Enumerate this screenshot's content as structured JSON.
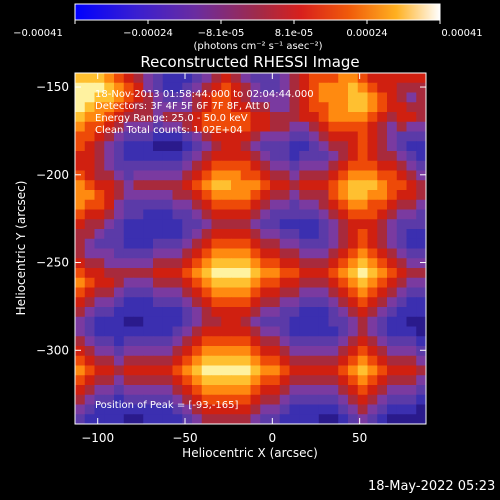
{
  "chart_data": {
    "type": "heatmap",
    "title": "Reconstructed RHESSI Image",
    "xlabel": "Heliocentric X (arcsec)",
    "ylabel": "Heliocentric Y (arcsec)",
    "xlim": [
      -113,
      88
    ],
    "ylim": [
      -342,
      -142
    ],
    "x_ticks": [
      -100,
      -50,
      0,
      50
    ],
    "y_ticks": [
      -150,
      -200,
      -250,
      -300
    ],
    "colorbar": {
      "range": [
        -0.00041,
        0.00041
      ],
      "tick_labels": [
        "-0.00041",
        "-0.00024",
        "-8.1e-05",
        "8.1e-05",
        "0.00024",
        "0.00041"
      ],
      "label": "(photons cm⁻² s⁻¹ asec⁻²)"
    },
    "info_lines": [
      "18-Nov-2013 01:58:44.000 to 02:04:44.000",
      "Detectors: 3F 4F 5F 6F 7F 8F, Att 0",
      "Energy Range: 25.0 - 50.0 keV",
      "Clean     Total counts: 1.02E+04"
    ],
    "peak_label": "Position of Peak = [-93,-165]",
    "grid": "36x36 heatmap, 0=min 9=max",
    "heatmap_rows": [
      "888765432111234543222345666776555555",
      "999876532112345654322345677787655444",
      "998876543223456654333345677788765434",
      "987765443333456655443345667788765544",
      "877654443444566666554445567777654554",
      "766543332334566666554433456666543433",
      "665432221112345555433322345556543222",
      "654321110001234554322211234456543211",
      "554321111112345555432212223456544321",
      "554322222223456666543323334566655432",
      "654432333334567776654434445677766543",
      "765543444445678877765545556788876654",
      "776543333344567777654434446788776554",
      "766532222233456666543323345677665443",
      "655432211122345555432222234566654332",
      "544321111112234444322111123455543222",
      "443221111112345555433221123456543211",
      "432221112223456666544332223456543211",
      "433322223334567777655443334567654322",
      "544333334445678888766554445678765433",
      "655444445556789999877665556789876544",
      "765543334445678888766554445678765433",
      "654432223334567777655443334567654322",
      "543321112223456666544332223456543211",
      "432211111112345555433221112345432111",
      "321110011112344554322211112234321100",
      "321111111123455555433211111234321110",
      "432212222234566666544322222345432221",
      "543323333345677777655433333456543332",
      "654434444456788888766544444567654443",
      "765545555567899999877655555678765554",
      "654434444456788888766544444567654443",
      "543323333345677777655433333456543332",
      "432212222234566666544322222345432221",
      "321111111123455555433211111234321110",
      "211110011112344444322111100123210000"
    ]
  }
}
